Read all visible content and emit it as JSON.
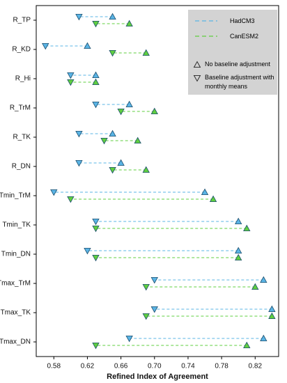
{
  "chart_data": {
    "type": "dumbbell",
    "x_label": "Refined Index of Agreement",
    "categories": [
      "R_TP",
      "R_KD",
      "R_Hi",
      "R_TrM",
      "R_TK",
      "R_DN",
      "Tmin_TrM",
      "Tmin_TK",
      "Tmin_DN",
      "Tmax_TrM",
      "Tmax_TK",
      "Tmax_DN"
    ],
    "series": [
      {
        "name": "HadCM3",
        "color": "#5ab4e5",
        "values": [
          0.65,
          0.62,
          0.63,
          0.67,
          0.65,
          0.66,
          0.76,
          0.8,
          0.8,
          0.83,
          0.84,
          0.83
        ],
        "adjusted_values": [
          0.61,
          0.57,
          0.6,
          0.63,
          0.61,
          0.61,
          0.58,
          0.63,
          0.62,
          0.7,
          0.7,
          0.67
        ]
      },
      {
        "name": "CanESM2",
        "color": "#5fcf3f",
        "values": [
          0.67,
          0.69,
          0.63,
          0.7,
          0.68,
          0.69,
          0.77,
          0.81,
          0.8,
          0.82,
          0.84,
          0.81
        ],
        "adjusted_values": [
          0.63,
          0.65,
          0.6,
          0.66,
          0.64,
          0.65,
          0.6,
          0.63,
          0.63,
          0.69,
          0.69,
          0.63
        ]
      }
    ],
    "markers": [
      {
        "name": "No baseline adjustment",
        "shape": "triangle-up"
      },
      {
        "name": "Baseline adjustment with monthly means",
        "shape": "triangle-down"
      }
    ],
    "xlim": [
      0.559,
      0.848
    ],
    "xticks": [
      0.58,
      0.62,
      0.66,
      {
        "value": 0.7,
        "label": "0.70"
      },
      0.74,
      0.78,
      0.82
    ],
    "legend": "top-right"
  }
}
